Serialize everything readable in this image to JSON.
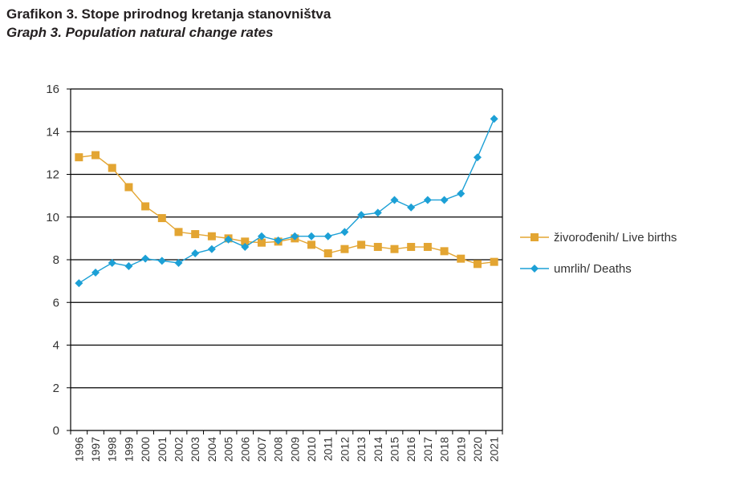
{
  "header": {
    "title_local": "Grafikon 3. Stope prirodnog kretanja stanovništva",
    "title_english": "Graph 3. Population natural change rates"
  },
  "chart_data": {
    "type": "line",
    "title": "Grafikon 3. Stope prirodnog kretanja stanovništva",
    "subtitle": "Graph 3. Population natural change rates",
    "xlabel": "",
    "ylabel": "",
    "ylim": [
      0,
      16
    ],
    "yticks": [
      0,
      2,
      4,
      6,
      8,
      10,
      12,
      14,
      16
    ],
    "grid": true,
    "legend_position": "right",
    "categories": [
      "1996",
      "1997",
      "1998",
      "1999",
      "2000",
      "2001",
      "2002",
      "2003",
      "2004",
      "2005",
      "2006",
      "2007",
      "2008",
      "2009",
      "2010",
      "2011",
      "2012",
      "2013",
      "2014",
      "2015",
      "2016",
      "2017",
      "2018",
      "2019",
      "2020",
      "2021"
    ],
    "series": [
      {
        "name": "živorođenih/ Live births",
        "color": "#e3a532",
        "marker": "square",
        "values": [
          12.8,
          12.9,
          12.3,
          11.4,
          10.5,
          9.95,
          9.3,
          9.2,
          9.1,
          9.0,
          8.85,
          8.8,
          8.85,
          9.0,
          8.7,
          8.3,
          8.5,
          8.7,
          8.6,
          8.5,
          8.6,
          8.6,
          8.4,
          8.05,
          7.8,
          7.9
        ]
      },
      {
        "name": "umrlih/ Deaths",
        "color": "#1ca0d6",
        "marker": "diamond",
        "values": [
          6.9,
          7.4,
          7.85,
          7.7,
          8.05,
          7.95,
          7.85,
          8.3,
          8.5,
          8.95,
          8.6,
          9.1,
          8.9,
          9.1,
          9.1,
          9.1,
          9.3,
          10.1,
          10.2,
          10.8,
          10.45,
          10.8,
          10.8,
          11.1,
          12.8,
          14.6
        ]
      }
    ]
  }
}
